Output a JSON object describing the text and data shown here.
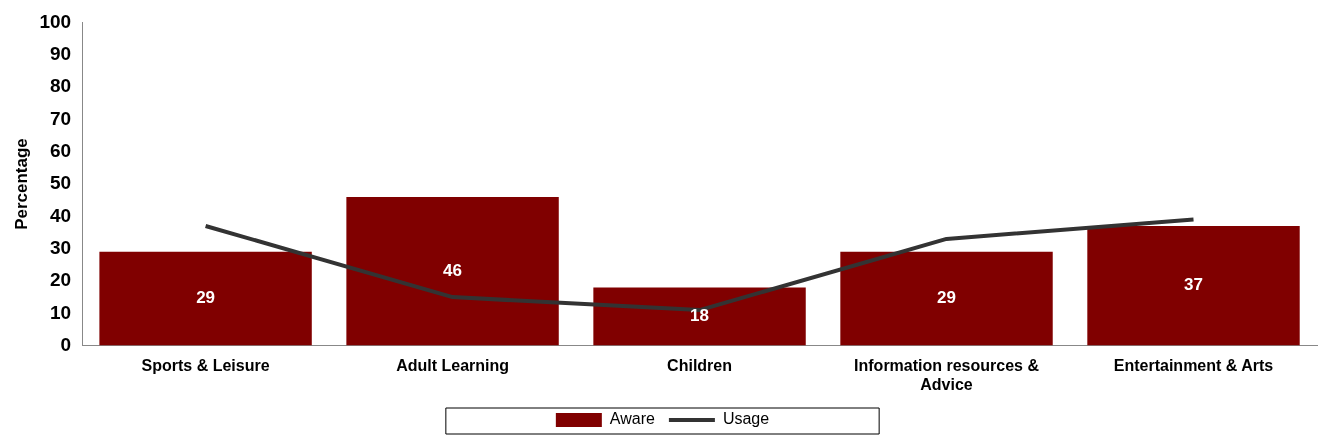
{
  "chart_data": {
    "type": "bar",
    "ylabel": "Percentage",
    "categories": [
      "Sports & Leisure",
      "Adult Learning",
      "Children",
      "Information resources & Advice",
      "Entertainment & Arts"
    ],
    "series": [
      {
        "name": "Aware",
        "color": "#800000",
        "values": [
          29,
          46,
          18,
          29,
          37
        ],
        "value_labels": [
          "29",
          "46",
          "18",
          "29",
          "37"
        ]
      },
      {
        "name": "Usage",
        "type": "line",
        "color": "#333333",
        "values": [
          37,
          15,
          11,
          33,
          39
        ]
      }
    ],
    "ylim": [
      0,
      100
    ],
    "yticks": [
      0,
      10,
      20,
      30,
      40,
      50,
      60,
      70,
      80,
      90,
      100
    ],
    "grid": false,
    "legend": "bottom",
    "marker": "none"
  }
}
